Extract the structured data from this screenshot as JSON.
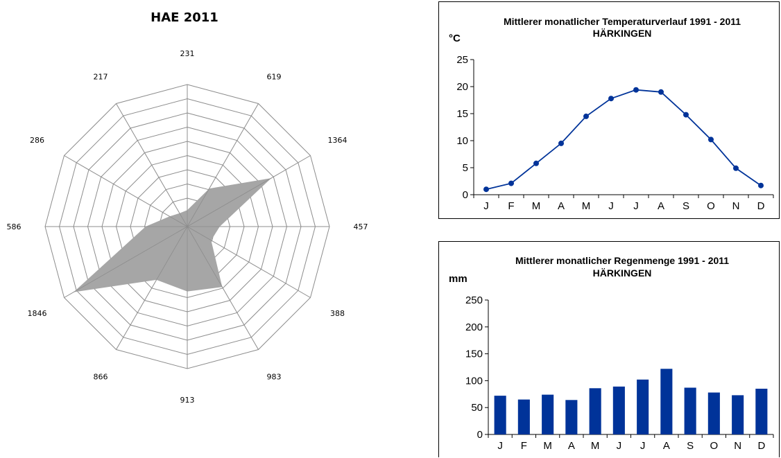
{
  "chart_data": [
    {
      "type": "radar",
      "title": "HAE 2011",
      "categories": [
        "231",
        "619",
        "1364",
        "457",
        "388",
        "983",
        "913",
        "866",
        "1846",
        "586",
        "286",
        "217"
      ],
      "values": [
        231,
        619,
        1364,
        457,
        388,
        983,
        913,
        866,
        1846,
        586,
        286,
        217
      ],
      "rings": 10,
      "r_max": 2000,
      "fill_color": "#a6a6a6",
      "grid_color": "#8c8c8c",
      "grid": true,
      "legend": "none"
    },
    {
      "type": "line",
      "title_line1": "Mittlerer monatlicher Temperaturverlauf 1991 - 2011",
      "title_line2": "HÄRKINGEN",
      "ylabel": "°C",
      "categories": [
        "J",
        "F",
        "M",
        "A",
        "M",
        "J",
        "J",
        "A",
        "S",
        "O",
        "N",
        "D"
      ],
      "values": [
        1.0,
        2.1,
        5.8,
        9.5,
        14.5,
        17.8,
        19.4,
        19.0,
        14.8,
        10.2,
        4.9,
        1.7
      ],
      "ylim": [
        0,
        25
      ],
      "yticks": [
        "0",
        "5",
        "10",
        "15",
        "20",
        "25"
      ],
      "color": "#003399",
      "grid": false
    },
    {
      "type": "bar",
      "title_line1": "Mittlerer monatlicher Regenmenge 1991 - 2011",
      "title_line2": "HÄRKINGEN",
      "ylabel": "mm",
      "categories": [
        "J",
        "F",
        "M",
        "A",
        "M",
        "J",
        "J",
        "A",
        "S",
        "O",
        "N",
        "D"
      ],
      "values": [
        72,
        65,
        74,
        64,
        86,
        89,
        102,
        122,
        87,
        78,
        73,
        85
      ],
      "ylim": [
        0,
        250
      ],
      "yticks": [
        "0",
        "50",
        "100",
        "150",
        "200",
        "250"
      ],
      "color": "#003399",
      "grid": false
    }
  ]
}
